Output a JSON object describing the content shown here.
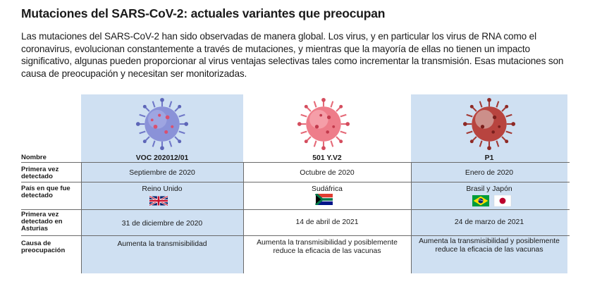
{
  "title": "Mutaciones del SARS-CoV-2: actuales variantes que preocupan",
  "intro": "Las mutaciones del SARS-CoV-2 han sido observadas de manera global. Los virus, y en particular los virus de RNA como el coronavirus, evolucionan constantemente a través de mutaciones, y mientras que la mayoría de ellas no tienen un impacto significativo, algunas pueden proporcionar al virus ventajas selectivas tales como incrementar la transmisión. Esas mutaciones son causa de preocupación y necesitan ser monitorizadas.",
  "row_labels": {
    "name": "Nombre",
    "first_detected": "Primera vez detectado",
    "country": "País en que fue detectado",
    "asturias": "Primera vez detectado en Asturias",
    "concern": "Causa de preocupación"
  },
  "variants": [
    {
      "name": "VOC 202012/01",
      "first_detected": "Septiembre de 2020",
      "country": "Reino Unido",
      "asturias": "31 de diciembre de 2020",
      "concern": "Aumenta la transmisibilidad",
      "flags": [
        "uk-flag-icon"
      ],
      "virus_color": "#8a92d8"
    },
    {
      "name": "501 Y.V2",
      "first_detected": "Octubre de 2020",
      "country": "Sudáfrica",
      "asturias": "14 de abril de 2021",
      "concern": "Aumenta la transmisibilidad y posiblemente reduce la eficacia de las vacunas",
      "flags": [
        "south-africa-flag-icon"
      ],
      "virus_color": "#ee7d8a"
    },
    {
      "name": "P1",
      "first_detected": "Enero de 2020",
      "country": "Brasil y Japón",
      "asturias": "24 de marzo de 2021",
      "concern": "Aumenta la transmisibilidad y posiblemente reduce la eficacia de las vacunas",
      "flags": [
        "brazil-flag-icon",
        "japan-flag-icon"
      ],
      "virus_color": "#b8443f"
    }
  ]
}
